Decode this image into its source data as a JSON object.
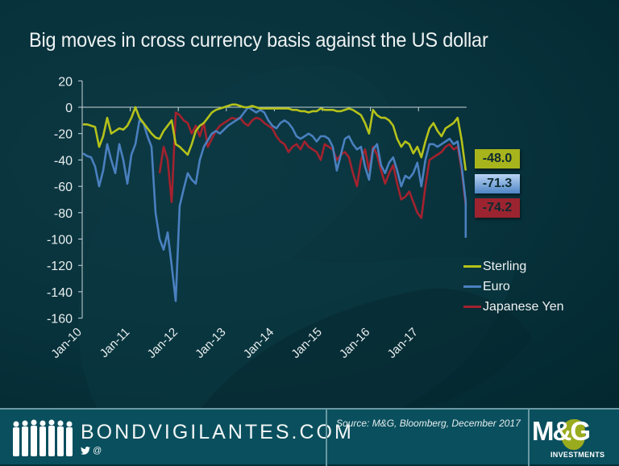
{
  "slide": {
    "title": "Big moves in cross currency basis against the US dollar"
  },
  "chart_data": {
    "type": "line",
    "title": "Big moves in cross currency basis against the US dollar",
    "xlabel": "",
    "ylabel": "",
    "ylim": [
      -160,
      20
    ],
    "yticks": [
      20,
      0,
      -20,
      -40,
      -60,
      -80,
      -100,
      -120,
      -140,
      -160
    ],
    "xticks": [
      "Jan-10",
      "Jan-11",
      "Jan-12",
      "Jan-13",
      "Jan-14",
      "Jan-15",
      "Jan-16",
      "Jan-17"
    ],
    "x_range": [
      "Jan-10",
      "Dec-17"
    ],
    "grid": false,
    "legend_position": "right",
    "sampling": "approximately monthly, Jan-2010 to Dec-2017 (96 points)",
    "series": [
      {
        "name": "Sterling",
        "color": "#b5c21a",
        "end_value": -48.0,
        "values": [
          -13,
          -13,
          -14,
          -15,
          -30,
          -22,
          -8,
          -20,
          -18,
          -16,
          -17,
          -14,
          -8,
          0,
          -8,
          -12,
          -16,
          -20,
          -23,
          -24,
          -18,
          -14,
          -10,
          -28,
          -30,
          -33,
          -36,
          -28,
          -18,
          -14,
          -12,
          -8,
          -4,
          -2,
          -1,
          0,
          1,
          2,
          2,
          1,
          0,
          0,
          1,
          0,
          -1,
          -1,
          -1,
          -1,
          -1,
          -1,
          -1,
          -1,
          -2,
          -2,
          -3,
          -3,
          -4,
          -3,
          -3,
          -1,
          -2,
          -2,
          -2,
          -3,
          -3,
          -2,
          -1,
          -2,
          -4,
          -6,
          -12,
          -20,
          -2,
          -6,
          -8,
          -8,
          -10,
          -14,
          -24,
          -30,
          -26,
          -28,
          -35,
          -30,
          -38,
          -26,
          -16,
          -12,
          -18,
          -22,
          -16,
          -14,
          -12,
          -8,
          -25,
          -48
        ]
      },
      {
        "name": "Euro",
        "color": "#4a80bf",
        "end_value": -71.3,
        "values": [
          -35,
          -37,
          -38,
          -45,
          -60,
          -48,
          -28,
          -40,
          -50,
          -28,
          -40,
          -58,
          -36,
          -28,
          -10,
          -12,
          -22,
          -30,
          -80,
          -100,
          -108,
          -95,
          -120,
          -147,
          -75,
          -62,
          -50,
          -55,
          -58,
          -40,
          -30,
          -25,
          -20,
          -18,
          -20,
          -17,
          -14,
          -12,
          -10,
          -8,
          -4,
          0,
          -2,
          -4,
          -2,
          -4,
          -10,
          -14,
          -16,
          -12,
          -10,
          -12,
          -16,
          -22,
          -24,
          -22,
          -20,
          -22,
          -26,
          -22,
          -22,
          -24,
          -30,
          -48,
          -36,
          -24,
          -22,
          -28,
          -32,
          -30,
          -45,
          -55,
          -32,
          -28,
          -44,
          -50,
          -42,
          -38,
          -48,
          -60,
          -52,
          -54,
          -50,
          -42,
          -60,
          -40,
          -28,
          -28,
          -30,
          -28,
          -26,
          -24,
          -28,
          -26,
          -45,
          -71.3
        ]
      },
      {
        "name": "Japanese Yen",
        "color": "#a3222e",
        "end_value": -74.2,
        "values": [
          null,
          null,
          null,
          null,
          null,
          null,
          null,
          null,
          null,
          null,
          null,
          null,
          null,
          null,
          null,
          null,
          null,
          null,
          null,
          -50,
          -30,
          -40,
          -72,
          -4,
          -6,
          -10,
          -12,
          -20,
          -14,
          -22,
          -12,
          -30,
          -24,
          -18,
          -14,
          -12,
          -10,
          -8,
          -9,
          -8,
          -12,
          -14,
          -10,
          -8,
          -9,
          -12,
          -14,
          -16,
          -22,
          -26,
          -28,
          -34,
          -30,
          -28,
          -32,
          -26,
          -30,
          -32,
          -34,
          -40,
          -28,
          -30,
          -32,
          -40,
          -36,
          -34,
          -38,
          -50,
          -60,
          -40,
          -32,
          -48,
          -30,
          -36,
          -48,
          -58,
          -50,
          -44,
          -58,
          -70,
          -68,
          -64,
          -72,
          -80,
          -84,
          -60,
          -40,
          -38,
          -36,
          -34,
          -30,
          -28,
          -32,
          -30,
          -48,
          -74.2
        ]
      }
    ],
    "annotations": [
      {
        "series": "Sterling",
        "label": "-48.0"
      },
      {
        "series": "Euro",
        "label": "-71.3"
      },
      {
        "series": "Japanese Yen",
        "label": "-74.2"
      }
    ]
  },
  "end_labels": {
    "sterling": "-48.0",
    "euro": "-71.3",
    "yen": "-74.2"
  },
  "legend": {
    "items": [
      {
        "label": "Sterling",
        "color": "#b5c21a"
      },
      {
        "label": "Euro",
        "color": "#4a80bf"
      },
      {
        "label": "Japanese Yen",
        "color": "#a3222e"
      }
    ]
  },
  "footer": {
    "brand": "BONDVIGILANTES.COM",
    "social": "✉@",
    "twitter_glyph": "🐦",
    "at_glyph": "@",
    "source": "Source: M&G, Bloomberg, December 2017",
    "logo_main": "M&G",
    "logo_sub": "INVESTMENTS"
  },
  "colors": {
    "background": "#07313b",
    "footer": "#0a4f5e",
    "sterling": "#b5c21a",
    "euro": "#4a80bf",
    "yen": "#a3222e",
    "axis": "#c8d4d6"
  }
}
